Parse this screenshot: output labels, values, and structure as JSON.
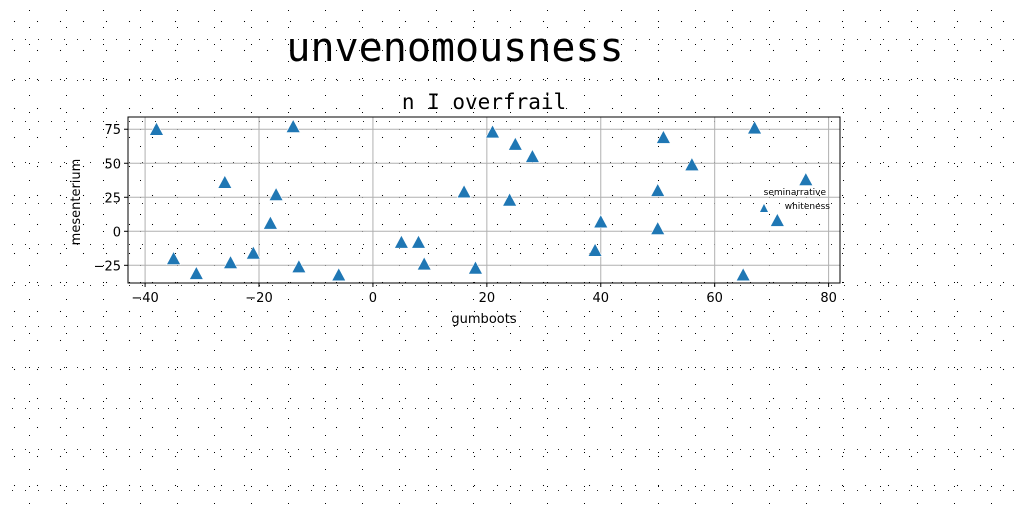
{
  "chart_data": {
    "type": "scatter",
    "suptitle": "unvenomousness",
    "title": "n I overfrail",
    "xlabel": "gumboots",
    "ylabel": "mesenterium",
    "xlim": [
      -43,
      82
    ],
    "ylim": [
      -38,
      84
    ],
    "xticks": [
      -40,
      -20,
      0,
      20,
      40,
      60,
      80
    ],
    "yticks": [
      -25,
      0,
      25,
      50,
      75
    ],
    "grid": true,
    "marker": "triangle-up",
    "color": "#1f77b4",
    "legend": {
      "placement": "center-right",
      "entries": [
        "seminarrative",
        "whiteness"
      ]
    },
    "points": [
      {
        "x": -38,
        "y": 75
      },
      {
        "x": -35,
        "y": -20
      },
      {
        "x": -31,
        "y": -31
      },
      {
        "x": -26,
        "y": 36
      },
      {
        "x": -25,
        "y": -23
      },
      {
        "x": -21,
        "y": -16
      },
      {
        "x": -18,
        "y": 6
      },
      {
        "x": -17,
        "y": 27
      },
      {
        "x": -14,
        "y": 77
      },
      {
        "x": -13,
        "y": -26
      },
      {
        "x": -6,
        "y": -32
      },
      {
        "x": 5,
        "y": -8
      },
      {
        "x": 8,
        "y": -8
      },
      {
        "x": 9,
        "y": -24
      },
      {
        "x": 16,
        "y": 29
      },
      {
        "x": 18,
        "y": -27
      },
      {
        "x": 21,
        "y": 73
      },
      {
        "x": 24,
        "y": 23
      },
      {
        "x": 25,
        "y": 64
      },
      {
        "x": 28,
        "y": 55
      },
      {
        "x": 39,
        "y": -14
      },
      {
        "x": 40,
        "y": 7
      },
      {
        "x": 50,
        "y": 30
      },
      {
        "x": 50,
        "y": 2
      },
      {
        "x": 51,
        "y": 69
      },
      {
        "x": 56,
        "y": 49
      },
      {
        "x": 65,
        "y": -32
      },
      {
        "x": 67,
        "y": 76
      },
      {
        "x": 71,
        "y": 8
      },
      {
        "x": 76,
        "y": 38
      }
    ]
  }
}
